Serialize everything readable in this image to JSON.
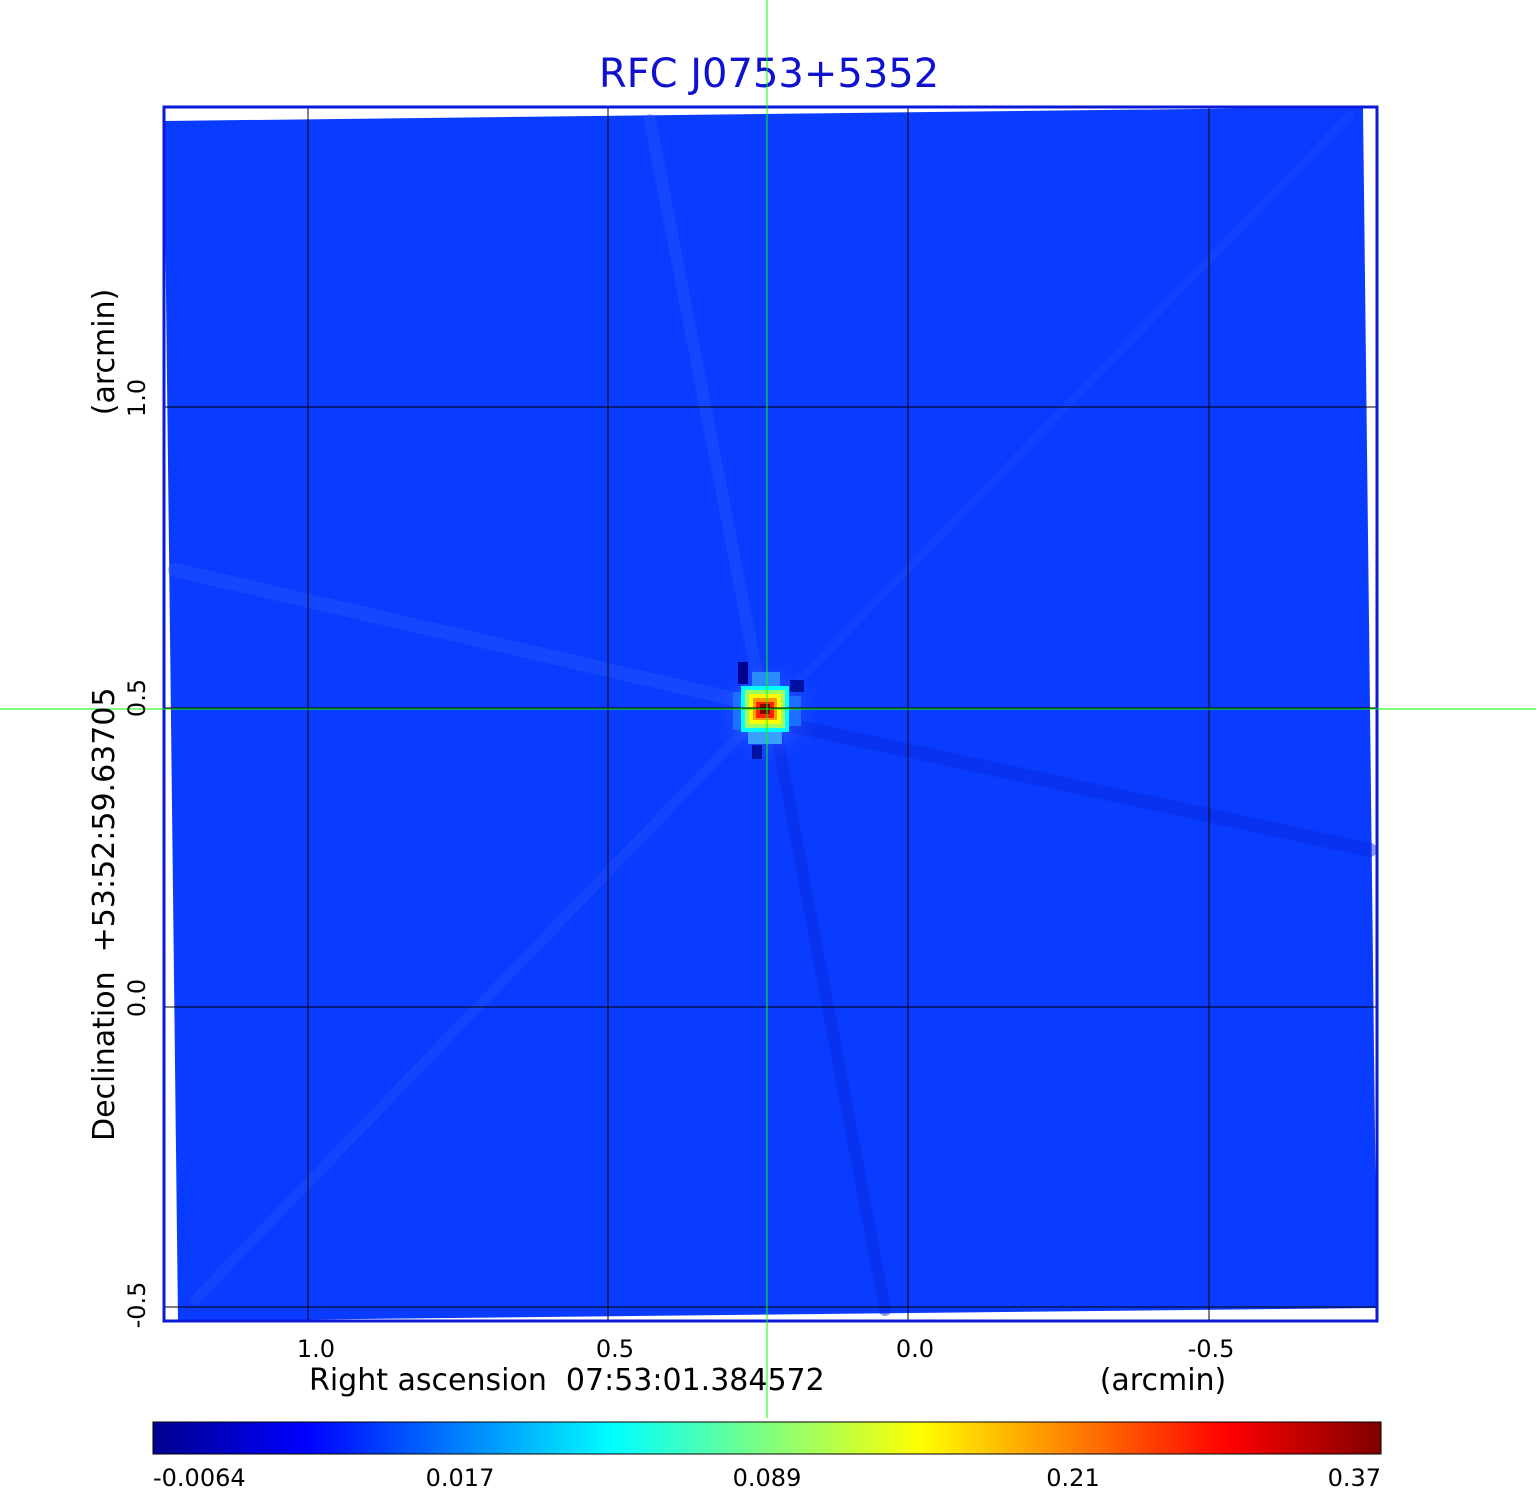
{
  "figure": {
    "title": "RFC J0753+5352",
    "x_axis": {
      "label": "Right ascension  07:53:01.384572",
      "unit": "(arcmin)",
      "ticks": [
        "1.0",
        "0.5",
        "0.0",
        "-0.5"
      ]
    },
    "y_axis": {
      "label": "Declination  +53:52:59.63705",
      "unit": "(arcmin)",
      "ticks": [
        "1.0",
        "0.5",
        "0.0",
        "-0.5"
      ]
    },
    "colorbar": {
      "ticks": [
        "-0.0064",
        "0.017",
        "0.089",
        "0.21",
        "0.37"
      ],
      "stops": [
        "#00008f",
        "#0000ff",
        "#00ffff",
        "#ffff00",
        "#ff0000",
        "#800000"
      ]
    },
    "colors": {
      "background_map": "#0a3cff",
      "frame": "#0a1ad8",
      "title": "#1010d0",
      "crosshair": "#00ff00",
      "grid": "#000000"
    }
  },
  "chart_data": {
    "type": "heatmap",
    "title": "RFC J0753+5352",
    "xlabel": "Right ascension  07:53:01.384572",
    "ylabel": "Declination  +53:52:59.63705",
    "units": "(arcmin)",
    "x_ticks": [
      1.0,
      0.5,
      0.0,
      -0.5
    ],
    "y_ticks": [
      1.0,
      0.5,
      0.0,
      -0.5
    ],
    "xlim": [
      1.24,
      -0.78
    ],
    "ylim": [
      -0.52,
      1.5
    ],
    "colorbar_ticks": [
      -0.0064,
      0.017,
      0.089,
      0.21,
      0.37
    ],
    "colorbar_range": [
      -0.0064,
      0.37
    ],
    "peak": {
      "x": 0.24,
      "y": 0.49,
      "value": 0.37
    },
    "crosshair": {
      "x": 0.24,
      "y": 0.5
    },
    "grid": true
  }
}
